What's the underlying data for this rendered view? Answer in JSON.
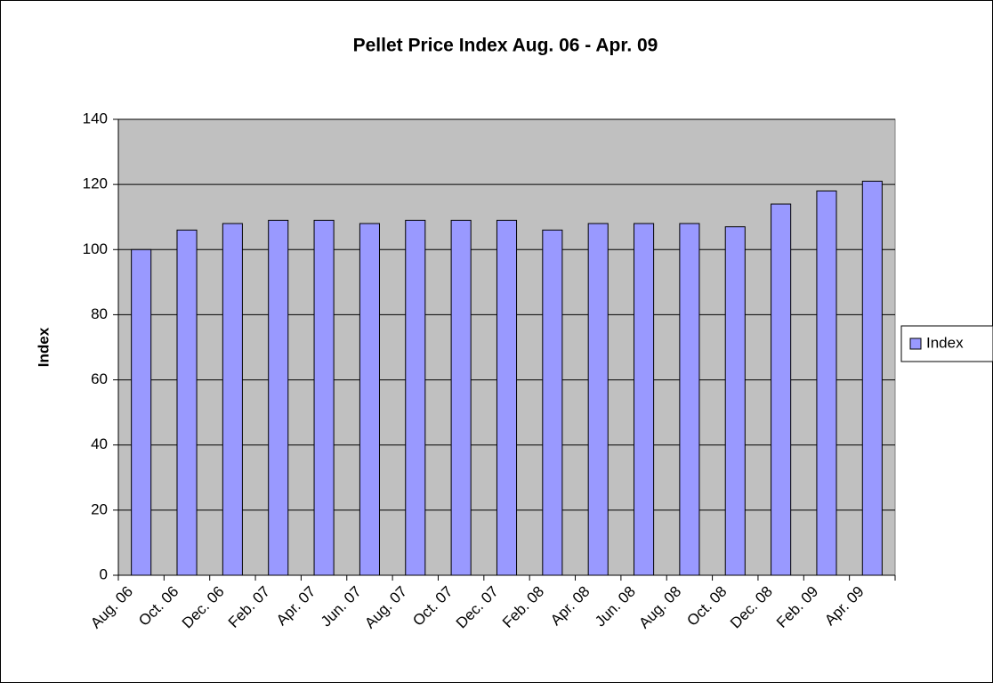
{
  "chart_data": {
    "type": "bar",
    "title": "Pellet Price Index Aug. 06 - Apr. 09",
    "y_label": "Index",
    "categories": [
      "Aug. 06",
      "Oct. 06",
      "Dec. 06",
      "Feb. 07",
      "Apr. 07",
      "Jun. 07",
      "Aug. 07",
      "Oct. 07",
      "Dec. 07",
      "Feb. 08",
      "Apr. 08",
      "Jun. 08",
      "Aug. 08",
      "Oct. 08",
      "Dec. 08",
      "Feb. 09",
      "Apr. 09"
    ],
    "series": [
      {
        "name": "Index",
        "color": "#9999ff",
        "values": [
          100,
          106,
          108,
          109,
          109,
          108,
          109,
          109,
          109,
          106,
          108,
          108,
          108,
          107,
          114,
          118,
          121
        ]
      }
    ],
    "ylim": [
      0,
      140
    ],
    "yticks": [
      0,
      20,
      40,
      60,
      80,
      100,
      120,
      140
    ],
    "grid": true,
    "legend": "right"
  }
}
